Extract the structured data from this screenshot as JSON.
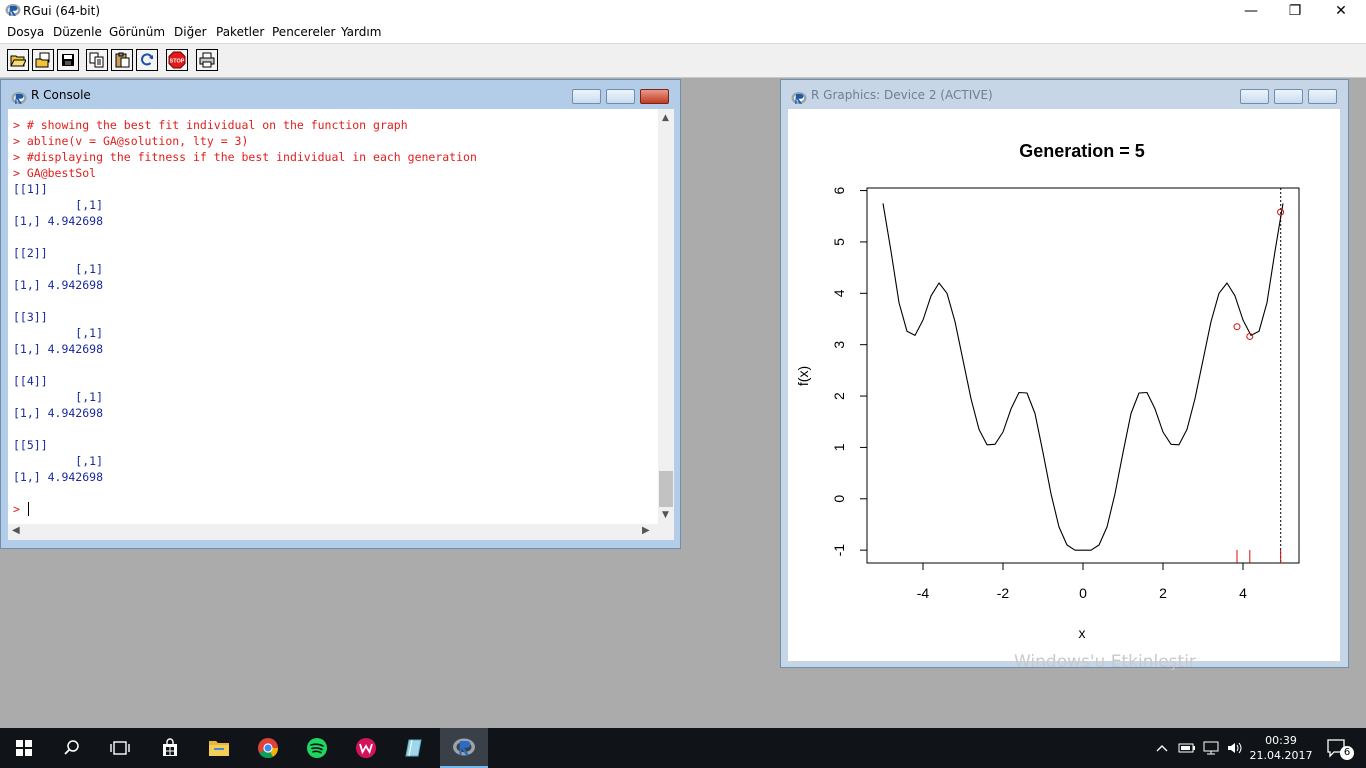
{
  "app": {
    "title": "RGui (64-bit)"
  },
  "window_controls": {
    "minimize": "—",
    "restore": "❐",
    "close": "✕"
  },
  "menu": [
    "Dosya",
    "Düzenle",
    "Görünüm",
    "Diğer",
    "Paketler",
    "Pencereler",
    "Yardım"
  ],
  "toolbar": {
    "buttons": [
      "open-script-icon",
      "load-workspace-icon",
      "save-icon",
      "copy-icon",
      "paste-icon",
      "copy-paste-icon",
      "stop-icon",
      "print-icon"
    ],
    "stop_label": "STOP"
  },
  "console": {
    "title": "R Console",
    "lines": [
      {
        "kind": "in",
        "text": "> # showing the best fit individual on the function graph"
      },
      {
        "kind": "in",
        "text": "> abline(v = GA@solution, lty = 3)"
      },
      {
        "kind": "in",
        "text": "> #displaying the fitness if the best individual in each generation"
      },
      {
        "kind": "in",
        "text": "> GA@bestSol"
      },
      {
        "kind": "out",
        "text": "[[1]]"
      },
      {
        "kind": "out",
        "text": "         [,1]"
      },
      {
        "kind": "out",
        "text": "[1,] 4.942698"
      },
      {
        "kind": "out",
        "text": ""
      },
      {
        "kind": "out",
        "text": "[[2]]"
      },
      {
        "kind": "out",
        "text": "         [,1]"
      },
      {
        "kind": "out",
        "text": "[1,] 4.942698"
      },
      {
        "kind": "out",
        "text": ""
      },
      {
        "kind": "out",
        "text": "[[3]]"
      },
      {
        "kind": "out",
        "text": "         [,1]"
      },
      {
        "kind": "out",
        "text": "[1,] 4.942698"
      },
      {
        "kind": "out",
        "text": ""
      },
      {
        "kind": "out",
        "text": "[[4]]"
      },
      {
        "kind": "out",
        "text": "         [,1]"
      },
      {
        "kind": "out",
        "text": "[1,] 4.942698"
      },
      {
        "kind": "out",
        "text": ""
      },
      {
        "kind": "out",
        "text": "[[5]]"
      },
      {
        "kind": "out",
        "text": "         [,1]"
      },
      {
        "kind": "out",
        "text": "[1,] 4.942698"
      },
      {
        "kind": "out",
        "text": ""
      },
      {
        "kind": "in",
        "text": "> "
      }
    ]
  },
  "graphics": {
    "title": "R Graphics: Device 2 (ACTIVE)"
  },
  "chart_data": {
    "type": "line",
    "title": "Generation = 5",
    "xlabel": "x",
    "ylabel": "f(x)",
    "xlim": [
      -5.4,
      5.4
    ],
    "ylim": [
      -1.25,
      6.05
    ],
    "x_ticks": [
      -4,
      -2,
      0,
      2,
      4
    ],
    "y_ticks": [
      -1,
      0,
      1,
      2,
      3,
      4,
      5,
      6
    ],
    "grid": false,
    "series": [
      {
        "x": [
          -5.0,
          -4.8,
          -4.6,
          -4.4,
          -4.2,
          -4.0,
          -3.8,
          -3.6,
          -3.4,
          -3.2,
          -3.0,
          -2.8,
          -2.6,
          -2.4,
          -2.2,
          -2.0,
          -1.8,
          -1.6,
          -1.4,
          -1.2,
          -1.0,
          -0.8,
          -0.6,
          -0.4,
          -0.2,
          0.0,
          0.2,
          0.4,
          0.6,
          0.8,
          1.0,
          1.2,
          1.4,
          1.6,
          1.8,
          2.0,
          2.2,
          2.4,
          2.6,
          2.8,
          3.0,
          3.2,
          3.4,
          3.6,
          3.8,
          4.0,
          4.2,
          4.4,
          4.6,
          4.8,
          5.0
        ],
        "y": [
          5.75,
          4.82,
          3.82,
          3.26,
          3.18,
          3.48,
          3.95,
          4.2,
          4.0,
          3.45,
          2.7,
          1.95,
          1.35,
          1.05,
          1.06,
          1.3,
          1.75,
          2.07,
          2.06,
          1.66,
          0.9,
          0.1,
          -0.55,
          -0.9,
          -1.0,
          -1.0,
          -1.0,
          -0.9,
          -0.55,
          0.1,
          0.9,
          1.66,
          2.06,
          2.07,
          1.75,
          1.3,
          1.06,
          1.05,
          1.35,
          1.95,
          2.7,
          3.45,
          4.0,
          4.2,
          3.95,
          3.48,
          3.18,
          3.26,
          3.82,
          4.82,
          5.75
        ],
        "color": "#000000"
      }
    ],
    "population": {
      "x": [
        3.85,
        4.17,
        4.94
      ],
      "y": [
        3.35,
        3.16,
        5.58
      ],
      "color": "#d01010"
    },
    "rug_x": [
      3.85,
      4.17,
      4.94
    ],
    "vline_x": 4.942698
  },
  "taskbar": {
    "icons": [
      "windows-start-icon",
      "search-icon",
      "task-view-icon",
      "store-icon",
      "file-explorer-icon",
      "chrome-icon",
      "spotify-icon",
      "app-w-icon",
      "app-book-icon",
      "r-icon"
    ],
    "time": "00:39",
    "date": "21.04.2017",
    "notifications": "6"
  },
  "watermark": "Windows'u Etkinleştir"
}
